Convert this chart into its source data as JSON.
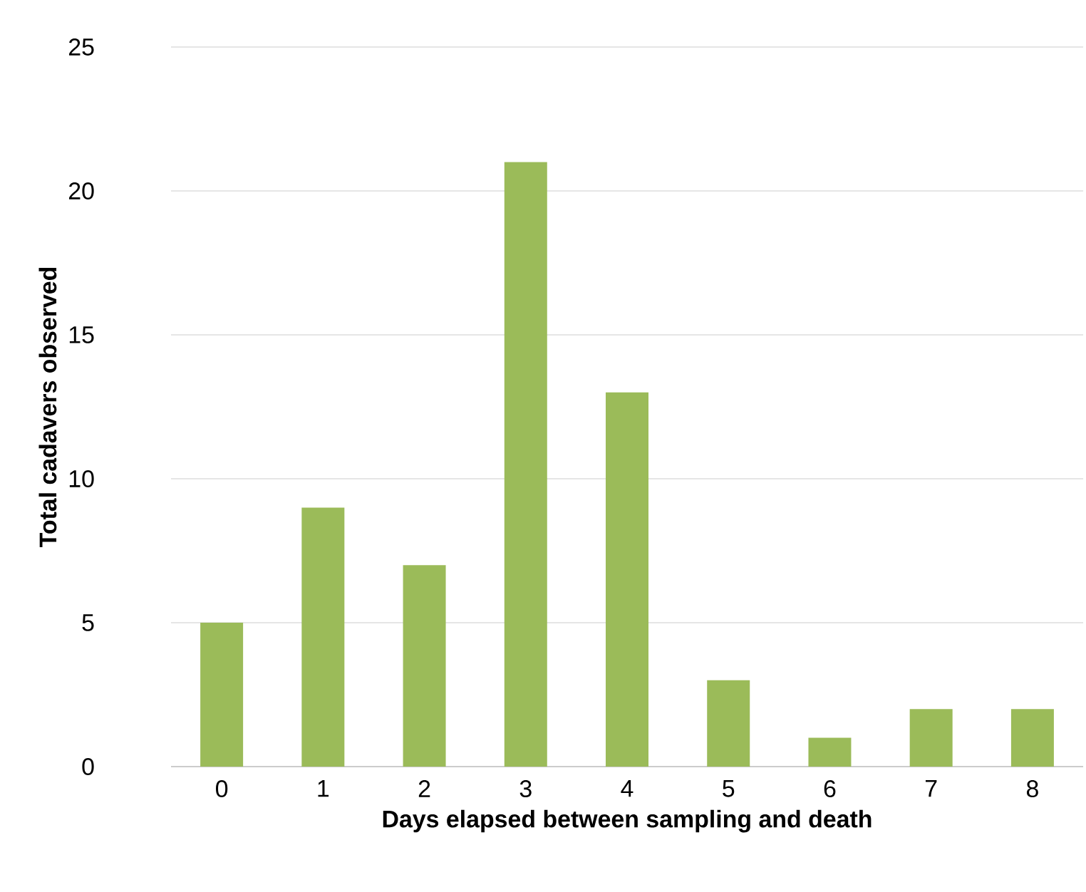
{
  "chart_data": {
    "type": "bar",
    "xlabel": "Days elapsed between sampling and death",
    "ylabel": "Total cadavers observed",
    "categories": [
      "0",
      "1",
      "2",
      "3",
      "4",
      "5",
      "6",
      "7",
      "8"
    ],
    "values": [
      5,
      9,
      7,
      21,
      13,
      3,
      1,
      2,
      2
    ],
    "color": "#9bbb59",
    "ylim": [
      0,
      25
    ],
    "yticks": [
      0,
      5,
      10,
      15,
      20,
      25
    ],
    "grid": "y"
  }
}
